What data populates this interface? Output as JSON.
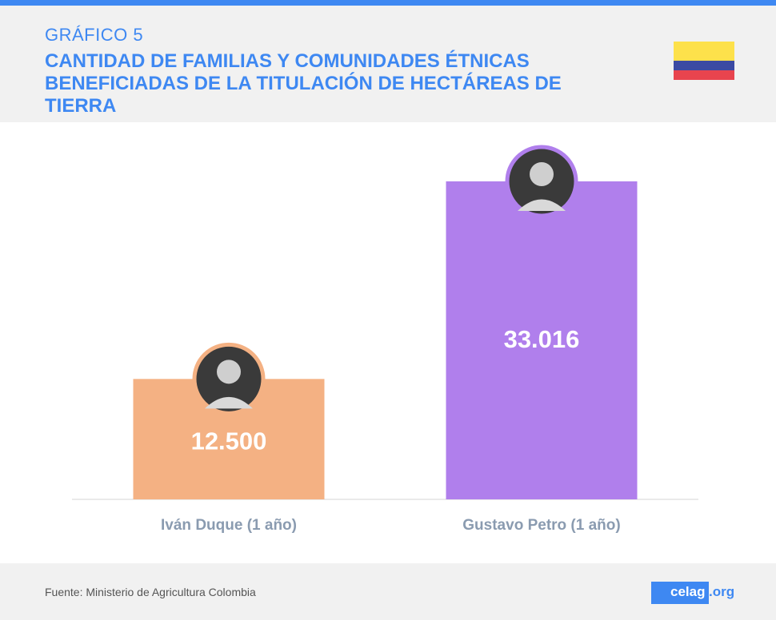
{
  "header": {
    "kicker": "GRÁFICO 5",
    "title": "CANTIDAD DE FAMILIAS Y COMUNIDADES ÉTNICAS BENEFICIADAS DE LA TITULACIÓN DE HECTÁREAS DE TIERRA"
  },
  "flag": {
    "colors": [
      "#fde14b",
      "#3b4aa3",
      "#e8444e"
    ]
  },
  "chart_data": {
    "type": "bar",
    "title": "CANTIDAD DE FAMILIAS Y COMUNIDADES ÉTNICAS BENEFICIADAS DE LA TITULACIÓN DE HECTÁREAS DE TIERRA",
    "categories": [
      "Iván Duque (1 año)",
      "Gustavo Petro (1 año)"
    ],
    "values": [
      12500,
      33016
    ],
    "value_labels": [
      "12.500",
      "33.016"
    ],
    "bar_colors": [
      "#f4b183",
      "#b07fec"
    ],
    "xlabel": "",
    "ylabel": "",
    "ylim": [
      0,
      35000
    ],
    "grid": false,
    "legend": "none"
  },
  "footer": {
    "source": "Fuente: Ministerio de Agricultura Colombia",
    "logo_main": "celag",
    "logo_tld": ".org"
  }
}
